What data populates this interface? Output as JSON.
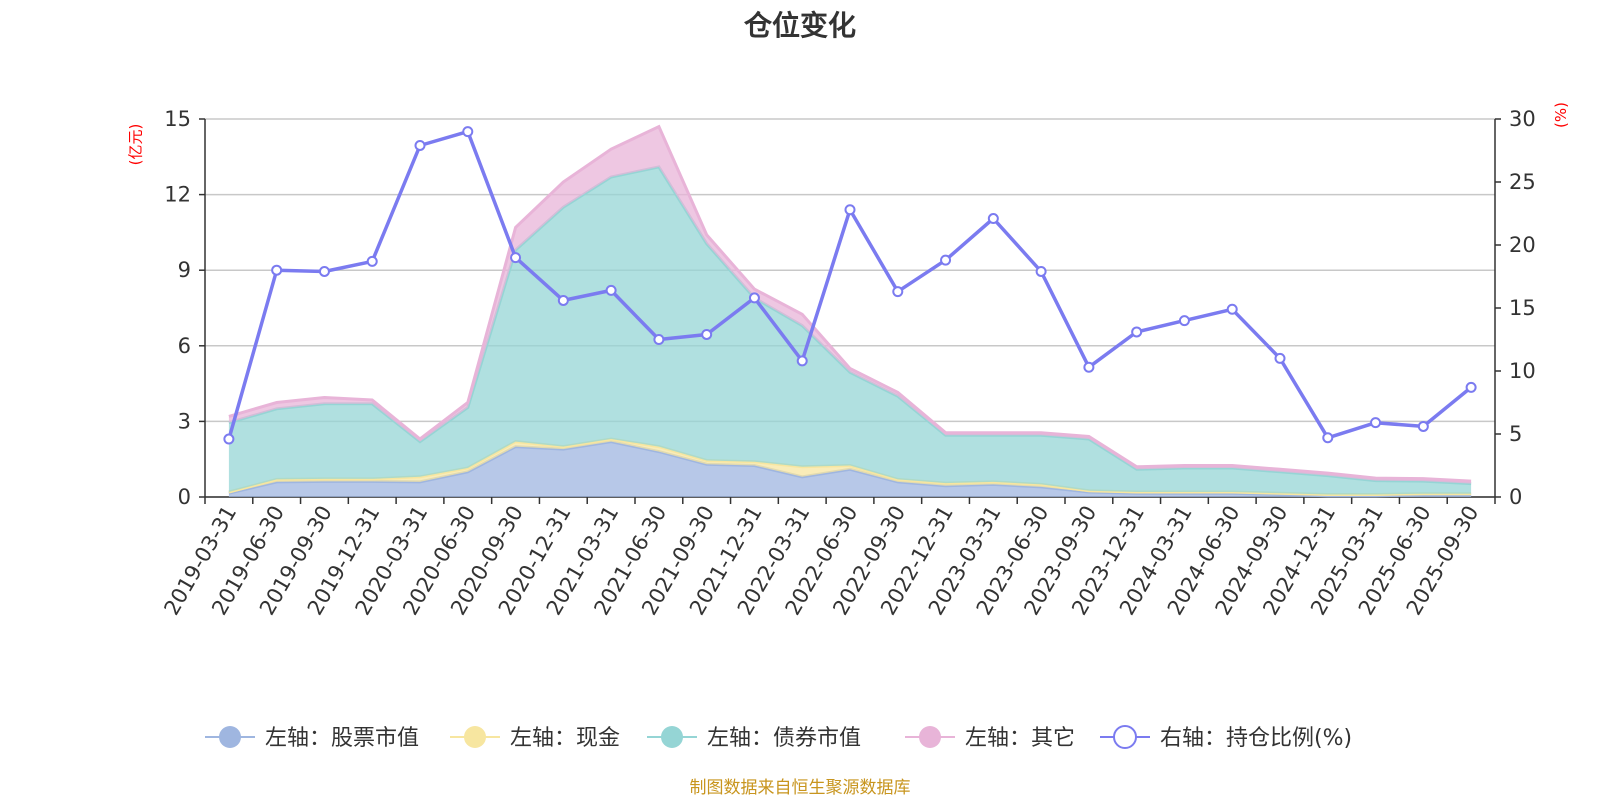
{
  "chart_data": {
    "type": "area",
    "title": "仓位变化",
    "left_unit": "(亿元)",
    "right_unit": "(%)",
    "source": "制图数据来自恒生聚源数据库",
    "categories": [
      "2019-03-31",
      "2019-06-30",
      "2019-09-30",
      "2019-12-31",
      "2020-03-31",
      "2020-06-30",
      "2020-09-30",
      "2020-12-31",
      "2021-03-31",
      "2021-06-30",
      "2021-09-30",
      "2021-12-31",
      "2022-03-31",
      "2022-06-30",
      "2022-09-30",
      "2022-12-31",
      "2023-03-31",
      "2023-06-30",
      "2023-09-30",
      "2023-12-31",
      "2024-03-31",
      "2024-06-30",
      "2024-09-30",
      "2024-12-31",
      "2025-03-31",
      "2025-06-30",
      "2025-09-30"
    ],
    "left_axis": {
      "min": 0,
      "max": 15,
      "ticks": [
        0,
        3,
        6,
        9,
        12,
        15
      ]
    },
    "right_axis": {
      "min": 0,
      "max": 30,
      "ticks": [
        0,
        5,
        10,
        15,
        20,
        25,
        30
      ]
    },
    "grid": true,
    "legend_position": "bottom",
    "series": [
      {
        "name": "左轴：股票市值",
        "axis": "left",
        "stacked": true,
        "color": "#9fb6e0",
        "values": [
          0.15,
          0.6,
          0.62,
          0.62,
          0.6,
          1.0,
          2.0,
          1.9,
          2.2,
          1.8,
          1.3,
          1.25,
          0.8,
          1.1,
          0.6,
          0.45,
          0.5,
          0.4,
          0.2,
          0.15,
          0.15,
          0.15,
          0.1,
          0.05,
          0.05,
          0.08,
          0.08
        ]
      },
      {
        "name": "左轴：现金",
        "axis": "left",
        "stacked": true,
        "color": "#f7e6a0",
        "values": [
          0.05,
          0.1,
          0.1,
          0.1,
          0.2,
          0.15,
          0.2,
          0.1,
          0.1,
          0.2,
          0.15,
          0.15,
          0.4,
          0.15,
          0.1,
          0.1,
          0.1,
          0.1,
          0.05,
          0.05,
          0.05,
          0.05,
          0.05,
          0.05,
          0.05,
          0.05,
          0.05
        ]
      },
      {
        "name": "左轴：债券市值",
        "axis": "left",
        "stacked": true,
        "color": "#95d5d5",
        "values": [
          2.75,
          2.8,
          2.98,
          2.98,
          1.4,
          2.4,
          7.6,
          9.5,
          10.4,
          11.1,
          8.6,
          6.5,
          5.6,
          3.7,
          3.3,
          1.9,
          1.85,
          1.95,
          2.05,
          0.9,
          0.95,
          0.95,
          0.85,
          0.75,
          0.55,
          0.5,
          0.4
        ]
      },
      {
        "name": "左轴：其它",
        "axis": "left",
        "stacked": true,
        "color": "#e8b4d8",
        "values": [
          0.25,
          0.25,
          0.25,
          0.15,
          0.1,
          0.2,
          0.9,
          1.0,
          1.1,
          1.6,
          0.35,
          0.35,
          0.45,
          0.15,
          0.15,
          0.1,
          0.1,
          0.1,
          0.1,
          0.1,
          0.1,
          0.1,
          0.1,
          0.1,
          0.1,
          0.1,
          0.1
        ]
      },
      {
        "name": "右轴：持仓比例(%)",
        "axis": "right",
        "type": "line",
        "color": "#7b7bf0",
        "values": [
          4.6,
          18.0,
          17.9,
          18.7,
          27.9,
          29.0,
          19.0,
          15.6,
          16.4,
          12.5,
          12.9,
          15.8,
          10.8,
          22.8,
          16.3,
          18.8,
          22.1,
          17.9,
          10.3,
          13.1,
          14.0,
          14.9,
          11.0,
          4.7,
          5.9,
          5.6,
          8.7
        ]
      }
    ]
  }
}
